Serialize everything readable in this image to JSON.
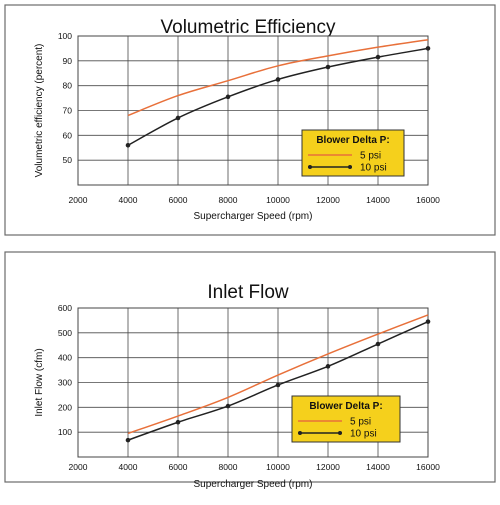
{
  "chart_data": [
    {
      "type": "line",
      "title": "Volumetric Efficiency",
      "xlabel": "Supercharger Speed (rpm)",
      "ylabel": "Volumetric efficiency (percent)",
      "xlim": [
        2000,
        16000
      ],
      "ylim": [
        40,
        100
      ],
      "xticks": [
        2000,
        4000,
        6000,
        8000,
        10000,
        12000,
        14000,
        16000
      ],
      "yticks": [
        50,
        60,
        70,
        80,
        90,
        100
      ],
      "grid": true,
      "legend": {
        "title": "Blower Delta P:",
        "placement": "lower-right",
        "background": "#f5d01c"
      },
      "series": [
        {
          "name": "5 psi",
          "color": "#e8703a",
          "marker": "none",
          "x": [
            4000,
            6000,
            8000,
            10000,
            12000,
            14000,
            16000
          ],
          "y": [
            68,
            76,
            82,
            88,
            92,
            95.5,
            98.5
          ]
        },
        {
          "name": "10 psi",
          "color": "#222222",
          "marker": "dot",
          "x": [
            4000,
            6000,
            8000,
            10000,
            12000,
            14000,
            16000
          ],
          "y": [
            56,
            67,
            75.5,
            82.5,
            87.5,
            91.5,
            95
          ]
        }
      ]
    },
    {
      "type": "line",
      "title": "Inlet Flow",
      "xlabel": "Supercharger Speed (rpm)",
      "ylabel": "Inlet Flow (cfm)",
      "xlim": [
        2000,
        16000
      ],
      "ylim": [
        0,
        600
      ],
      "xticks": [
        2000,
        4000,
        6000,
        8000,
        10000,
        12000,
        14000,
        16000
      ],
      "yticks": [
        100,
        200,
        300,
        400,
        500,
        600
      ],
      "grid": true,
      "legend": {
        "title": "Blower Delta P:",
        "placement": "lower-right",
        "background": "#f5d01c"
      },
      "series": [
        {
          "name": "5 psi",
          "color": "#e8703a",
          "marker": "none",
          "x": [
            4000,
            6000,
            8000,
            10000,
            12000,
            14000,
            16000
          ],
          "y": [
            95,
            165,
            240,
            330,
            415,
            495,
            572
          ]
        },
        {
          "name": "10 psi",
          "color": "#222222",
          "marker": "dot",
          "x": [
            4000,
            6000,
            8000,
            10000,
            12000,
            14000,
            16000
          ],
          "y": [
            68,
            140,
            205,
            290,
            365,
            455,
            545
          ]
        }
      ]
    }
  ]
}
